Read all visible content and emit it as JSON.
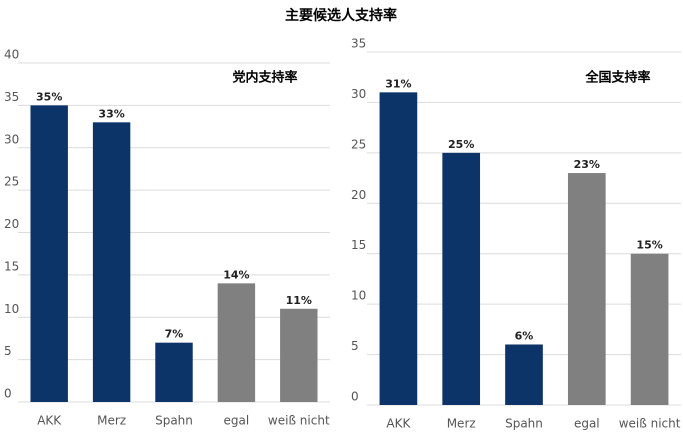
{
  "title": "主要候选人支持率",
  "chart_data": [
    {
      "type": "bar",
      "subtitle": "党内支持率",
      "categories": [
        "AKK",
        "Merz",
        "Spahn",
        "egal",
        "weiß nicht"
      ],
      "values": [
        35,
        33,
        7,
        14,
        11
      ],
      "value_labels": [
        "35%",
        "33%",
        "7%",
        "14%",
        "11%"
      ],
      "colors": [
        "#0d3469",
        "#0d3469",
        "#0d3469",
        "#808080",
        "#808080"
      ],
      "ylim": [
        0,
        40
      ],
      "yticks": [
        0,
        5,
        10,
        15,
        20,
        25,
        30,
        35,
        40
      ],
      "grid": true
    },
    {
      "type": "bar",
      "subtitle": "全国支持率",
      "categories": [
        "AKK",
        "Merz",
        "Spahn",
        "egal",
        "weiß nicht"
      ],
      "values": [
        31,
        25,
        6,
        23,
        15
      ],
      "value_labels": [
        "31%",
        "25%",
        "6%",
        "23%",
        "15%"
      ],
      "colors": [
        "#0d3469",
        "#0d3469",
        "#0d3469",
        "#808080",
        "#808080"
      ],
      "ylim": [
        0,
        35
      ],
      "yticks": [
        0,
        5,
        10,
        15,
        20,
        25,
        30,
        35
      ],
      "grid": true
    }
  ]
}
